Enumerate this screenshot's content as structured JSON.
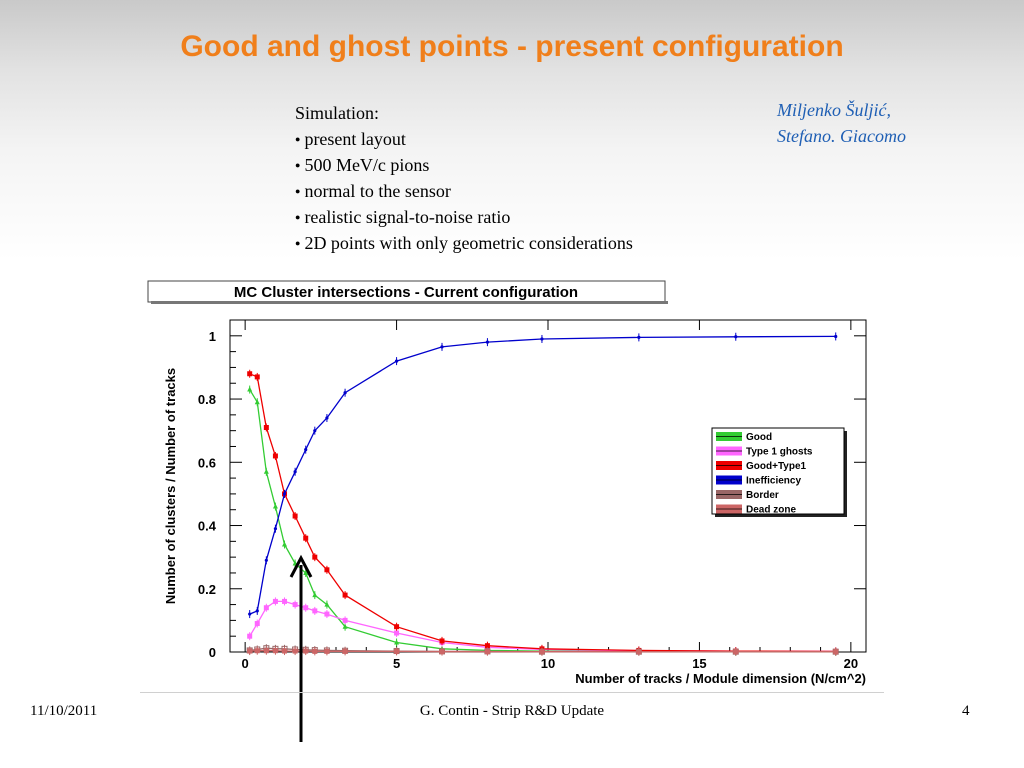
{
  "slide": {
    "title": "Good and ghost points - present configuration",
    "simulation_heading": "Simulation:",
    "bullets": [
      "present layout",
      "500 MeV/c pions",
      "normal to the sensor",
      "realistic signal-to-noise ratio",
      "2D points with only geometric considerations"
    ],
    "authors": [
      "Miljenko Šuljić,",
      "Stefano. Giacomo"
    ]
  },
  "footer": {
    "date": "11/10/2011",
    "center": "G. Contin - Strip R&D Update",
    "page": "4"
  },
  "colors": {
    "title": "#f07f1b",
    "authors": "#1f5fb4",
    "good": "#33cc33",
    "type1": "#ff66ff",
    "good_type1": "#ee0000",
    "inefficiency": "#0000cc",
    "border": "#996666",
    "dead_zone": "#cc6666"
  },
  "chart_data": {
    "type": "line",
    "title": "MC Cluster intersections - Current configuration",
    "xlabel": "Number of tracks / Module dimension (N/cm^2)",
    "ylabel": "Number of clusters / Number of tracks",
    "xlim": [
      -0.5,
      20.5
    ],
    "ylim": [
      0,
      1.05
    ],
    "xticks": [
      "0",
      "5",
      "10",
      "15",
      "20"
    ],
    "yticks": [
      "0",
      "0.2",
      "0.4",
      "0.6",
      "0.8",
      "1"
    ],
    "legend_position": "right",
    "annotation": "arrow pointing at x≈2",
    "series": [
      {
        "name": "Good",
        "x": [
          0.15,
          0.4,
          0.7,
          1.0,
          1.3,
          1.65,
          2.0,
          2.3,
          2.7,
          3.3,
          5.0,
          6.5,
          8.0,
          9.8,
          13.0,
          16.2,
          19.5
        ],
        "y": [
          0.83,
          0.79,
          0.57,
          0.46,
          0.34,
          0.28,
          0.25,
          0.18,
          0.15,
          0.08,
          0.03,
          0.01,
          0.005,
          0.003,
          0.002,
          0.001,
          0.001
        ]
      },
      {
        "name": "Type 1 ghosts",
        "x": [
          0.15,
          0.4,
          0.7,
          1.0,
          1.3,
          1.65,
          2.0,
          2.3,
          2.7,
          3.3,
          5.0,
          6.5,
          8.0,
          9.8,
          13.0,
          16.2,
          19.5
        ],
        "y": [
          0.05,
          0.09,
          0.14,
          0.16,
          0.16,
          0.15,
          0.14,
          0.13,
          0.12,
          0.1,
          0.06,
          0.03,
          0.015,
          0.008,
          0.004,
          0.003,
          0.002
        ]
      },
      {
        "name": "Good+Type1",
        "x": [
          0.15,
          0.4,
          0.7,
          1.0,
          1.3,
          1.65,
          2.0,
          2.3,
          2.7,
          3.3,
          5.0,
          6.5,
          8.0,
          9.8,
          13.0,
          16.2,
          19.5
        ],
        "y": [
          0.88,
          0.87,
          0.71,
          0.62,
          0.5,
          0.43,
          0.36,
          0.3,
          0.26,
          0.18,
          0.08,
          0.035,
          0.02,
          0.01,
          0.005,
          0.003,
          0.002
        ]
      },
      {
        "name": "Inefficiency",
        "x": [
          0.15,
          0.4,
          0.7,
          1.0,
          1.3,
          1.65,
          2.0,
          2.3,
          2.7,
          3.3,
          5.0,
          6.5,
          8.0,
          9.8,
          13.0,
          16.2,
          19.5
        ],
        "y": [
          0.12,
          0.13,
          0.29,
          0.39,
          0.5,
          0.57,
          0.64,
          0.7,
          0.74,
          0.82,
          0.92,
          0.965,
          0.98,
          0.99,
          0.995,
          0.997,
          0.998
        ]
      },
      {
        "name": "Border",
        "x": [
          0.15,
          0.4,
          0.7,
          1.0,
          1.3,
          1.65,
          2.0,
          2.3,
          2.7,
          3.3,
          5.0,
          6.5,
          8.0,
          9.8,
          13.0,
          16.2,
          19.5
        ],
        "y": [
          0.005,
          0.008,
          0.012,
          0.01,
          0.01,
          0.008,
          0.007,
          0.006,
          0.005,
          0.004,
          0.003,
          0.002,
          0.002,
          0.001,
          0.001,
          0.001,
          0.001
        ]
      },
      {
        "name": "Dead zone",
        "x": [
          0.15,
          0.4,
          0.7,
          1.0,
          1.3,
          1.65,
          2.0,
          2.3,
          2.7,
          3.3,
          5.0,
          6.5,
          8.0,
          9.8,
          13.0,
          16.2,
          19.5
        ],
        "y": [
          0.003,
          0.004,
          0.004,
          0.004,
          0.003,
          0.003,
          0.003,
          0.002,
          0.002,
          0.002,
          0.002,
          0.001,
          0.001,
          0.001,
          0.001,
          0.001,
          0.001
        ]
      }
    ]
  }
}
